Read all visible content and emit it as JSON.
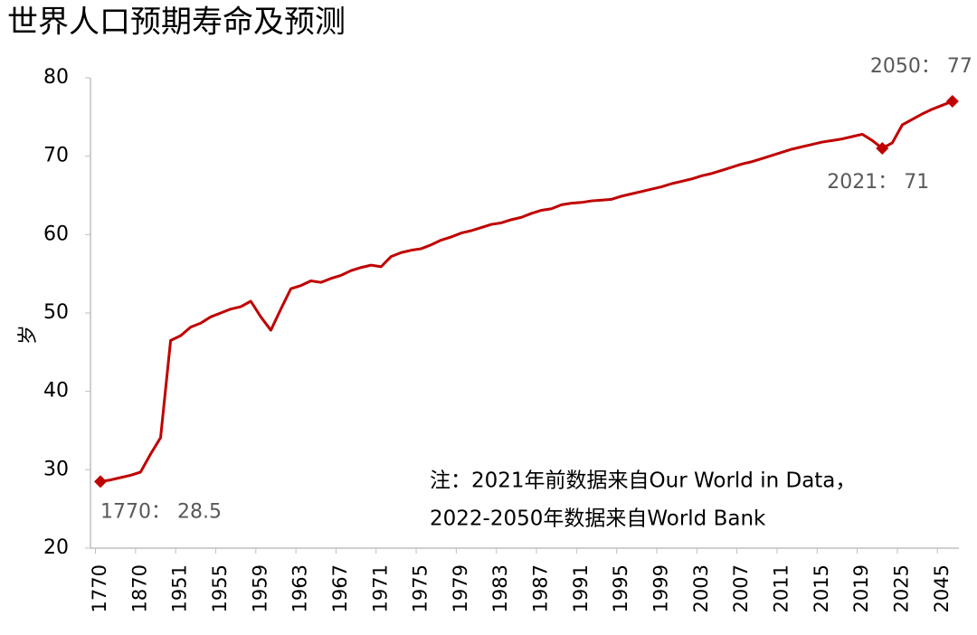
{
  "chart_data": {
    "type": "line",
    "title": "世界人口预期寿命及预测",
    "y_label": "岁",
    "note": [
      "注：2021年前数据来自Our World in Data，",
      "2022-2050年数据来自World Bank"
    ],
    "categories": [
      "1770",
      null,
      null,
      null,
      "1870",
      null,
      null,
      null,
      "1951",
      null,
      null,
      null,
      "1955",
      null,
      null,
      null,
      "1959",
      null,
      null,
      null,
      "1963",
      null,
      null,
      null,
      "1967",
      null,
      null,
      null,
      "1971",
      null,
      null,
      null,
      "1975",
      null,
      null,
      null,
      "1979",
      null,
      null,
      null,
      "1983",
      null,
      null,
      null,
      "1987",
      null,
      null,
      null,
      "1991",
      null,
      null,
      null,
      "1995",
      null,
      null,
      null,
      "1999",
      null,
      null,
      null,
      "2003",
      null,
      null,
      null,
      "2007",
      null,
      null,
      null,
      "2011",
      null,
      null,
      null,
      "2015",
      null,
      null,
      null,
      "2019",
      null,
      null,
      null,
      "2025",
      null,
      null,
      null,
      "2045",
      null
    ],
    "series": [
      {
        "name": "预期寿命",
        "color": "#c00000",
        "values": [
          28.5,
          28.7,
          29.0,
          29.3,
          29.7,
          32.0,
          34.1,
          46.5,
          47.1,
          48.2,
          48.7,
          49.5,
          50.0,
          50.5,
          50.8,
          51.5,
          49.5,
          47.8,
          50.5,
          53.1,
          53.5,
          54.1,
          53.9,
          54.4,
          54.8,
          55.4,
          55.8,
          56.1,
          55.9,
          57.2,
          57.7,
          58.0,
          58.2,
          58.7,
          59.3,
          59.7,
          60.2,
          60.5,
          60.9,
          61.3,
          61.5,
          61.9,
          62.2,
          62.7,
          63.1,
          63.3,
          63.8,
          64.0,
          64.1,
          64.3,
          64.4,
          64.5,
          64.9,
          65.2,
          65.5,
          65.8,
          66.1,
          66.5,
          66.8,
          67.1,
          67.5,
          67.8,
          68.2,
          68.6,
          69.0,
          69.3,
          69.7,
          70.1,
          70.5,
          70.9,
          71.2,
          71.5,
          71.8,
          72.0,
          72.2,
          72.5,
          72.8,
          72.0,
          71,
          71.7,
          74.0,
          74.7,
          75.4,
          76.0,
          76.5,
          77
        ],
        "value_labels": [
          "1770：  28.5",
          null,
          null,
          null,
          null,
          null,
          null,
          null,
          null,
          null,
          null,
          null,
          null,
          null,
          null,
          null,
          null,
          null,
          null,
          null,
          null,
          null,
          null,
          null,
          null,
          null,
          null,
          null,
          null,
          null,
          null,
          null,
          null,
          null,
          null,
          null,
          null,
          null,
          null,
          null,
          null,
          null,
          null,
          null,
          null,
          null,
          null,
          null,
          null,
          null,
          null,
          null,
          null,
          null,
          null,
          null,
          null,
          null,
          null,
          null,
          null,
          null,
          null,
          null,
          null,
          null,
          null,
          null,
          null,
          null,
          null,
          null,
          null,
          null,
          null,
          null,
          null,
          null,
          "2021：  71",
          null,
          null,
          null,
          null,
          null,
          null,
          "2050：  77"
        ]
      }
    ],
    "ylim": [
      20,
      80
    ],
    "yticks": [
      20,
      30,
      40,
      50,
      60,
      70,
      80
    ],
    "grid": false
  }
}
